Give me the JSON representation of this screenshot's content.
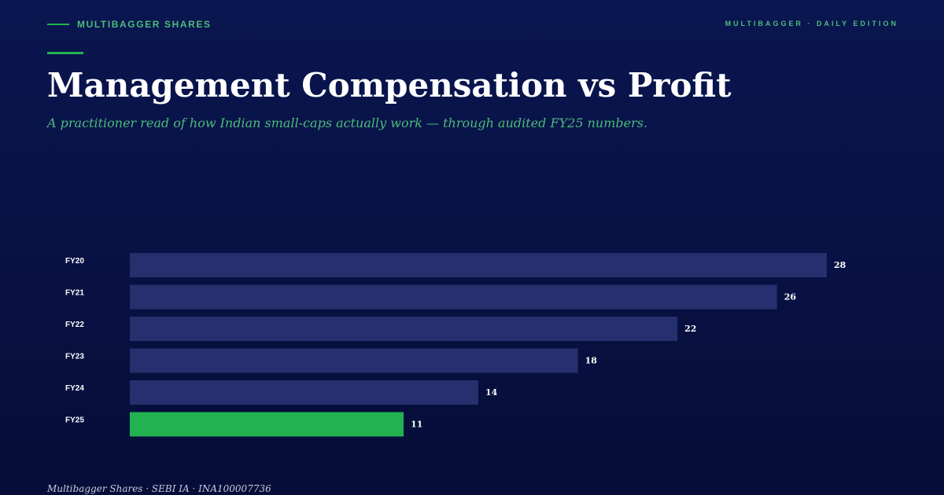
{
  "header": {
    "kicker": "MULTIBAGGER SHARES",
    "edition": "MULTIBAGGER · DAILY EDITION"
  },
  "title": "Management Compensation vs Profit",
  "subtitle": "A practitioner read of how Indian small-caps actually work — through audited FY25 numbers.",
  "footer": "Multibagger Shares · SEBI IA · INA100007736",
  "colors": {
    "background": "#081245",
    "accent": "#22b350",
    "bar": "#27306e",
    "highlight_bar": "#22b350"
  },
  "chart_data": {
    "type": "bar",
    "orientation": "horizontal",
    "categories": [
      "FY20",
      "FY21",
      "FY22",
      "FY23",
      "FY24",
      "FY25"
    ],
    "values": [
      28,
      26,
      22,
      18,
      14,
      11
    ],
    "highlight": "FY25",
    "xlim": [
      0,
      28
    ],
    "grid": false,
    "legend": "none"
  }
}
